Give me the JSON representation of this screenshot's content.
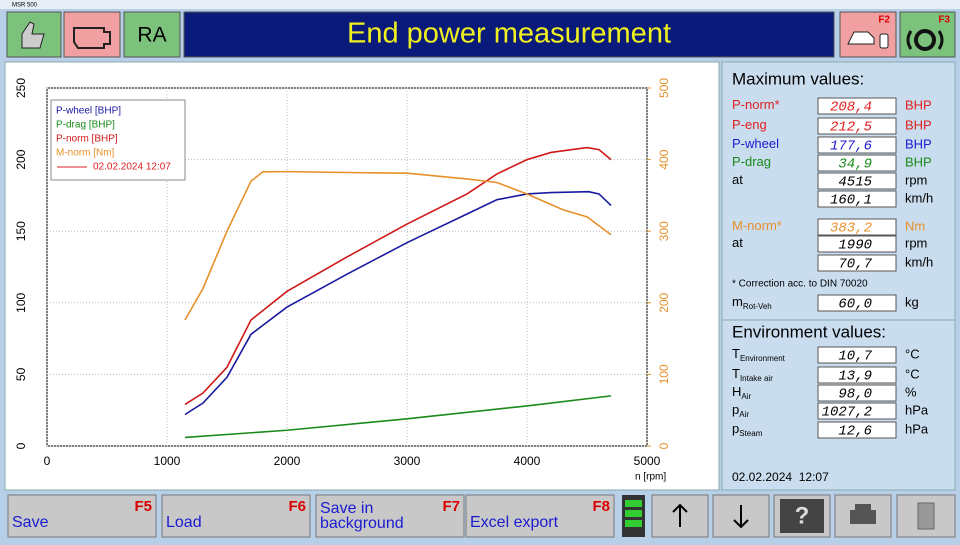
{
  "window_title": "MSR 500",
  "header": {
    "mode": "RA",
    "title": "End power measurement",
    "f2": "F2",
    "f3": "F3"
  },
  "chart_data": {
    "type": "line",
    "x_label": "n [rpm]",
    "xlim": [
      0,
      5000
    ],
    "xticks": [
      0,
      1000,
      2000,
      3000,
      4000,
      5000
    ],
    "ylim": [
      0,
      250
    ],
    "yticks": [
      0,
      50,
      100,
      150,
      200,
      250
    ],
    "y2lim": [
      0,
      500
    ],
    "y2ticks": [
      0,
      100,
      200,
      300,
      400,
      500
    ],
    "y2color": "#e8902a",
    "grid": true,
    "legend": "upper left",
    "legend_date": "02.02.2024 12:07",
    "legend_date_color": "#e02020",
    "series": [
      {
        "name": "P-wheel [BHP]",
        "color": "#1a1aa0",
        "x": [
          1150,
          1300,
          1500,
          1700,
          2000,
          2500,
          3000,
          3200,
          3500,
          3750,
          4000,
          4200,
          4515,
          4600,
          4700
        ],
        "values": [
          22,
          30,
          48,
          78,
          97,
          120,
          142,
          150,
          162,
          172,
          176,
          177,
          177.6,
          176,
          168
        ]
      },
      {
        "name": "P-drag [BHP]",
        "color": "#1a8a1a",
        "x": [
          1150,
          2000,
          3000,
          4000,
          4700
        ],
        "values": [
          6,
          11,
          19,
          28,
          35
        ]
      },
      {
        "name": "P-norm [BHP]",
        "color": "#d01818",
        "x": [
          1150,
          1300,
          1500,
          1700,
          2000,
          2500,
          3000,
          3500,
          3750,
          4000,
          4200,
          4500,
          4600,
          4700
        ],
        "values": [
          29,
          37,
          55,
          88,
          108,
          132,
          155,
          176,
          190,
          200,
          205,
          208.4,
          207,
          200
        ]
      },
      {
        "name": "M-norm [Nm]",
        "color": "#e8902a",
        "axis": "y2",
        "x": [
          1150,
          1300,
          1500,
          1700,
          1800,
          1990,
          2500,
          3000,
          3500,
          3750,
          4000,
          4300,
          4500,
          4700
        ],
        "values": [
          176,
          220,
          300,
          370,
          383,
          383.2,
          382,
          381,
          373,
          368,
          352,
          330,
          320,
          295
        ]
      }
    ]
  },
  "panel": {
    "max_title": "Maximum values:",
    "max_rows": [
      {
        "label": "P-norm*",
        "value": "208,4",
        "unit": "BHP",
        "color": "#e02020"
      },
      {
        "label": "P-eng",
        "value": "212,5",
        "unit": "BHP",
        "color": "#e02020"
      },
      {
        "label": "P-wheel",
        "value": "177,6",
        "unit": "BHP",
        "color": "#1a1ad0"
      },
      {
        "label": "P-drag",
        "value": "34,9",
        "unit": "BHP",
        "color": "#1a8a1a"
      },
      {
        "label": "at",
        "value": "4515",
        "unit": "rpm"
      },
      {
        "label": null,
        "value": "160,1",
        "unit": "km/h"
      },
      {
        "label": "M-norm*",
        "value": "383,2",
        "unit": "Nm",
        "color": "#e8902a"
      },
      {
        "label": "at",
        "value": "1990",
        "unit": "rpm"
      },
      {
        "label": null,
        "value": "70,7",
        "unit": "km/h"
      }
    ],
    "note": "* Correction acc. to DIN 70020",
    "mass": {
      "label": "m",
      "sub": "Rot-Veh",
      "value": "60,0",
      "unit": "kg"
    },
    "env_title": "Environment values:",
    "env_rows": [
      {
        "label": "T",
        "sub": "Environment",
        "value": "10,7",
        "unit": "°C"
      },
      {
        "label": "T",
        "sub": "Intake air",
        "value": "13,9",
        "unit": "°C"
      },
      {
        "label": "H",
        "sub": "Air",
        "value": "98,0",
        "unit": "%"
      },
      {
        "label": "p",
        "sub": "Air",
        "value": "1027,2",
        "unit": "hPa"
      },
      {
        "label": "p",
        "sub": "Steam",
        "value": "12,6",
        "unit": "hPa"
      }
    ],
    "date": "02.02.2024  12:07"
  },
  "toolbar": [
    {
      "label": "Save",
      "key": "F5"
    },
    {
      "label": "Load",
      "key": "F6"
    },
    {
      "label": "Save in background",
      "key": "F7"
    },
    {
      "label": "Excel export",
      "key": "F8"
    }
  ],
  "help": "?"
}
